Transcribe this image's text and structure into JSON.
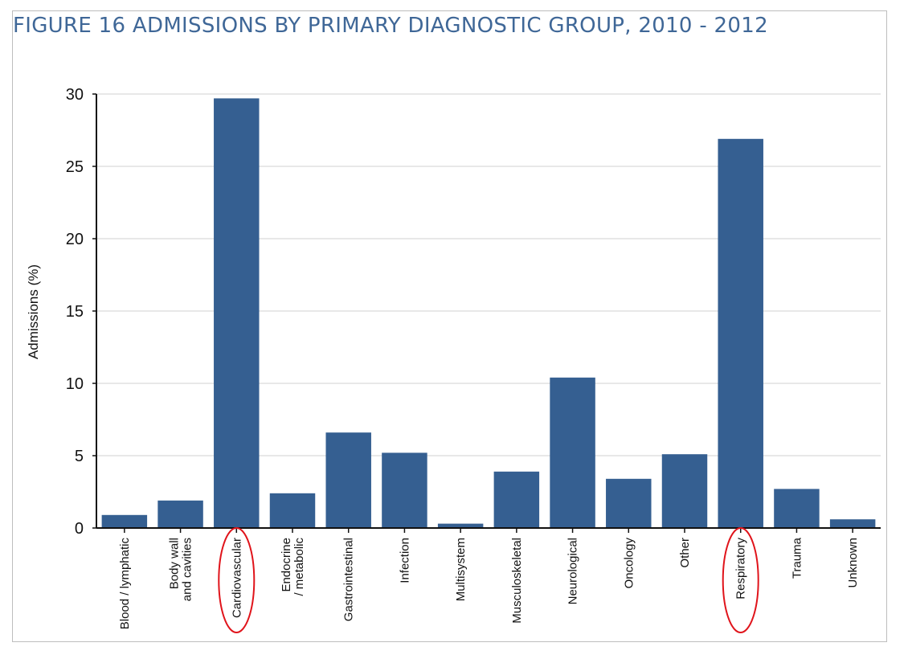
{
  "title": "FIGURE 16 ADMISSIONS BY PRIMARY DIAGNOSTIC GROUP, 2010 - 2012",
  "chart_data": {
    "type": "bar",
    "categories": [
      "Blood / lymphatic",
      "Body wall\nand cavities",
      "Cardiovascular",
      "Endocrine\n/ metabolic",
      "Gastrointestinal",
      "Infection",
      "Multisystem",
      "Musculoskeletal",
      "Neurological",
      "Oncology",
      "Other",
      "Respiratory",
      "Trauma",
      "Unknown"
    ],
    "values": [
      0.9,
      1.9,
      29.7,
      2.4,
      6.6,
      5.2,
      0.3,
      3.9,
      10.4,
      3.4,
      5.1,
      26.9,
      2.7,
      0.6
    ],
    "xlabel": "",
    "ylabel": "Admissions (%)",
    "ylim": [
      0,
      30
    ],
    "yticks": [
      0,
      5,
      10,
      15,
      20,
      25,
      30
    ],
    "grid": true,
    "bar_color": "#355f91",
    "highlighted_categories": [
      "Cardiovascular",
      "Respiratory"
    ],
    "highlight_color": "#e0141b"
  }
}
